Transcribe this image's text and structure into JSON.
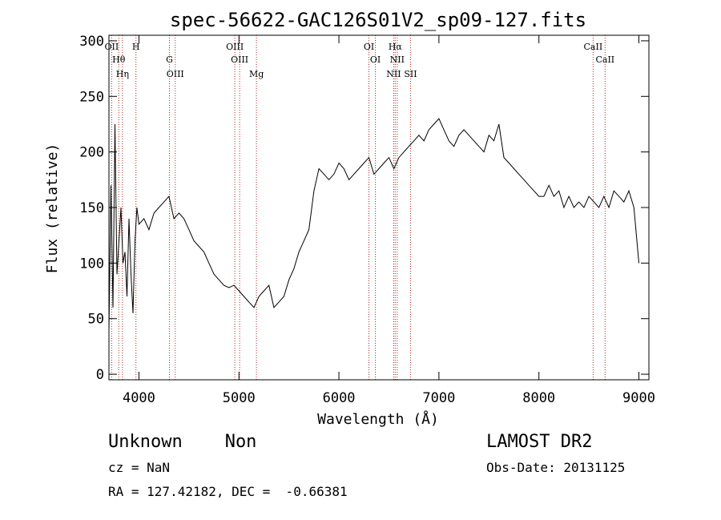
{
  "chart_data": {
    "type": "line",
    "title": "spec-56622-GAC126S01V2_sp09-127.fits",
    "xlabel": "Wavelength (Å)",
    "ylabel": "Flux (relative)",
    "xlim": [
      3700,
      9100
    ],
    "ylim": [
      -5,
      305
    ],
    "xticks": [
      4000,
      5000,
      6000,
      7000,
      8000,
      9000
    ],
    "yticks": [
      0,
      50,
      100,
      150,
      200,
      250,
      300
    ],
    "series": [
      {
        "x": [
          3700,
          3720,
          3740,
          3760,
          3780,
          3800,
          3820,
          3840,
          3860,
          3880,
          3900,
          3920,
          3940,
          3960,
          3980,
          4000,
          4050,
          4100,
          4150,
          4200,
          4250,
          4300,
          4350,
          4400,
          4450,
          4500,
          4550,
          4600,
          4650,
          4700,
          4750,
          4800,
          4850,
          4900,
          4950,
          5000,
          5050,
          5100,
          5150,
          5200,
          5250,
          5300,
          5350,
          5400,
          5450,
          5500,
          5550,
          5600,
          5650,
          5700,
          5750,
          5800,
          5850,
          5900,
          5950,
          6000,
          6050,
          6100,
          6150,
          6200,
          6250,
          6300,
          6350,
          6400,
          6450,
          6500,
          6550,
          6600,
          6650,
          6700,
          6750,
          6800,
          6850,
          6900,
          6950,
          7000,
          7050,
          7100,
          7150,
          7200,
          7250,
          7300,
          7350,
          7400,
          7450,
          7500,
          7550,
          7600,
          7650,
          7700,
          7750,
          7800,
          7850,
          7900,
          7950,
          8000,
          8050,
          8100,
          8150,
          8200,
          8250,
          8300,
          8350,
          8400,
          8450,
          8500,
          8550,
          8600,
          8650,
          8700,
          8750,
          8800,
          8850,
          8900,
          8950,
          9000
        ],
        "values": [
          40,
          170,
          60,
          225,
          90,
          120,
          150,
          100,
          110,
          70,
          140,
          90,
          55,
          120,
          150,
          135,
          140,
          130,
          145,
          150,
          155,
          160,
          140,
          145,
          140,
          130,
          120,
          115,
          110,
          100,
          90,
          85,
          80,
          78,
          80,
          75,
          70,
          65,
          60,
          70,
          75,
          80,
          60,
          65,
          70,
          85,
          95,
          110,
          120,
          130,
          165,
          185,
          180,
          175,
          180,
          190,
          185,
          175,
          180,
          185,
          190,
          195,
          180,
          185,
          190,
          195,
          185,
          195,
          200,
          205,
          210,
          215,
          210,
          220,
          225,
          230,
          220,
          210,
          205,
          215,
          220,
          215,
          210,
          205,
          200,
          215,
          210,
          225,
          195,
          190,
          185,
          180,
          175,
          170,
          165,
          160,
          160,
          170,
          160,
          165,
          150,
          160,
          150,
          155,
          150,
          160,
          155,
          150,
          160,
          150,
          165,
          160,
          155,
          165,
          150,
          100
        ]
      }
    ],
    "reference_lines": [
      {
        "x": 3727,
        "label": "OII"
      },
      {
        "x": 3798,
        "label": "Hθ"
      },
      {
        "x": 3835,
        "label": "Hη"
      },
      {
        "x": 3970,
        "label": "H"
      },
      {
        "x": 4305,
        "label": "G"
      },
      {
        "x": 4363,
        "label": "OIII"
      },
      {
        "x": 4959,
        "label": "OIII"
      },
      {
        "x": 5007,
        "label": "OIII"
      },
      {
        "x": 5175,
        "label": "Mg"
      },
      {
        "x": 6300,
        "label": "OI"
      },
      {
        "x": 6364,
        "label": "OI"
      },
      {
        "x": 6548,
        "label": "NII"
      },
      {
        "x": 6563,
        "label": "Hα"
      },
      {
        "x": 6583,
        "label": "NII"
      },
      {
        "x": 6716,
        "label": "SII"
      },
      {
        "x": 8542,
        "label": "CaII"
      },
      {
        "x": 8662,
        "label": "CaII"
      }
    ],
    "line_color": "#000000",
    "reference_line_color": "#b22222"
  },
  "info": {
    "class_text": "Unknown    Non",
    "survey": "LAMOST DR2",
    "cz_text": "cz = NaN",
    "obs_date_text": "Obs-Date: 20131125",
    "coords_text": "RA = 127.42182, DEC =  -0.66381"
  }
}
